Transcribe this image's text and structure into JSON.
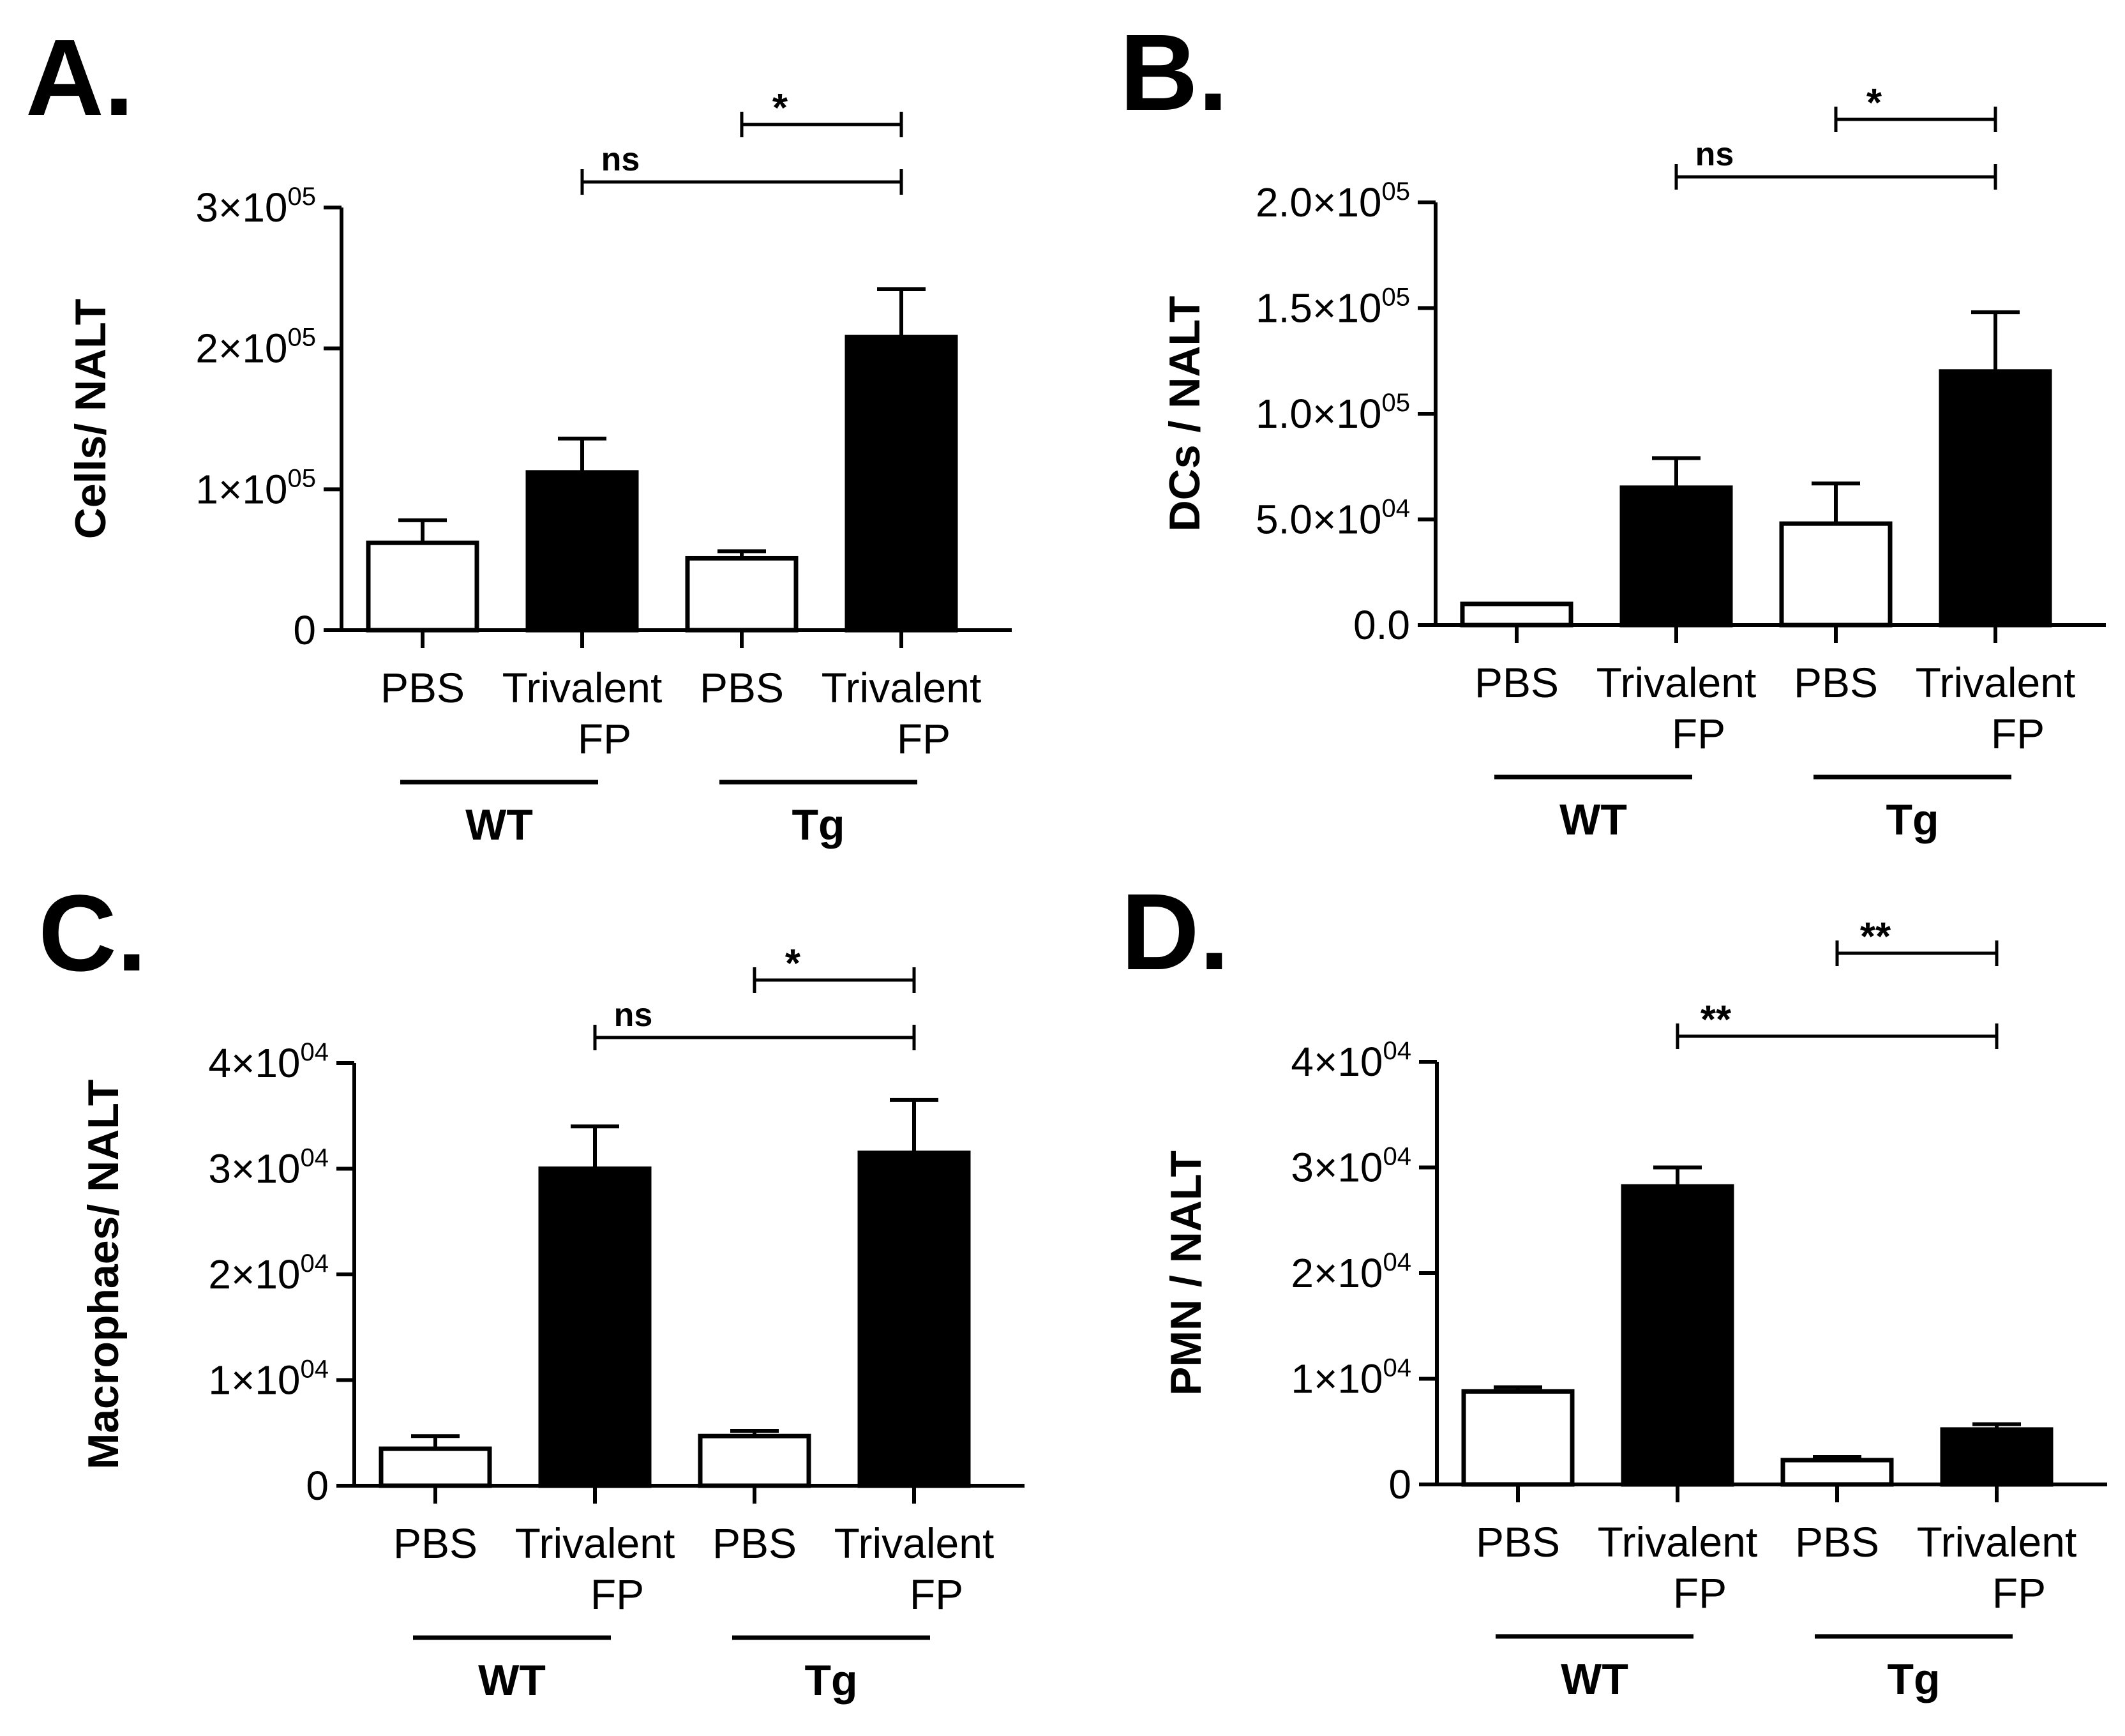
{
  "chart_data": [
    {
      "type": "bar",
      "panel": "A.",
      "ylabel": "Cells/ NALT",
      "yticks": [
        {
          "value": 0,
          "mant": "0",
          "exp": ""
        },
        {
          "value": 100000,
          "mant": "1×10",
          "exp": "05"
        },
        {
          "value": 200000,
          "mant": "2×10",
          "exp": "05"
        },
        {
          "value": 300000,
          "mant": "3×10",
          "exp": "05"
        }
      ],
      "ylim": [
        0,
        300000
      ],
      "categories": [
        {
          "line1": "PBS",
          "line2": "",
          "fill": "open"
        },
        {
          "line1": "Trivalent",
          "line2": "FP",
          "fill": "filled"
        },
        {
          "line1": "PBS",
          "line2": "",
          "fill": "open"
        },
        {
          "line1": "Trivalent",
          "line2": "FP",
          "fill": "filled"
        }
      ],
      "values": [
        62000,
        112000,
        51000,
        208000
      ],
      "errors": [
        16000,
        24000,
        5000,
        34000
      ],
      "groups": [
        {
          "label": "WT",
          "from": 0,
          "to": 1
        },
        {
          "label": "Tg",
          "from": 2,
          "to": 3
        }
      ],
      "significance": [
        {
          "label": "ns",
          "from": 1,
          "to": 3,
          "level": 0
        },
        {
          "label": "*",
          "from": 2,
          "to": 3,
          "level": 1
        }
      ]
    },
    {
      "type": "bar",
      "panel": "B.",
      "ylabel": "DCs / NALT",
      "yticks": [
        {
          "value": 0,
          "mant": "0.0",
          "exp": ""
        },
        {
          "value": 50000,
          "mant": "5.0×10",
          "exp": "04"
        },
        {
          "value": 100000,
          "mant": "1.0×10",
          "exp": "05"
        },
        {
          "value": 150000,
          "mant": "1.5×10",
          "exp": "05"
        },
        {
          "value": 200000,
          "mant": "2.0×10",
          "exp": "05"
        }
      ],
      "ylim": [
        0,
        200000
      ],
      "categories": [
        {
          "line1": "PBS",
          "line2": "",
          "fill": "open"
        },
        {
          "line1": "Trivalent",
          "line2": "FP",
          "fill": "filled"
        },
        {
          "line1": "PBS",
          "line2": "",
          "fill": "open"
        },
        {
          "line1": "Trivalent",
          "line2": "FP",
          "fill": "filled"
        }
      ],
      "values": [
        10000,
        65000,
        48000,
        120000
      ],
      "errors": [
        0,
        14000,
        19000,
        28000
      ],
      "groups": [
        {
          "label": "WT",
          "from": 0,
          "to": 1
        },
        {
          "label": "Tg",
          "from": 2,
          "to": 3
        }
      ],
      "significance": [
        {
          "label": "ns",
          "from": 1,
          "to": 3,
          "level": 0
        },
        {
          "label": "*",
          "from": 2,
          "to": 3,
          "level": 1
        }
      ]
    },
    {
      "type": "bar",
      "panel": "C.",
      "ylabel": "Macrophaes/ NALT",
      "yticks": [
        {
          "value": 0,
          "mant": "0",
          "exp": ""
        },
        {
          "value": 10000,
          "mant": "1×10",
          "exp": "04"
        },
        {
          "value": 20000,
          "mant": "2×10",
          "exp": "04"
        },
        {
          "value": 30000,
          "mant": "3×10",
          "exp": "04"
        },
        {
          "value": 40000,
          "mant": "4×10",
          "exp": "04"
        }
      ],
      "ylim": [
        0,
        40000
      ],
      "categories": [
        {
          "line1": "PBS",
          "line2": "",
          "fill": "open"
        },
        {
          "line1": "Trivalent",
          "line2": "FP",
          "fill": "filled"
        },
        {
          "line1": "PBS",
          "line2": "",
          "fill": "open"
        },
        {
          "line1": "Trivalent",
          "line2": "FP",
          "fill": "filled"
        }
      ],
      "values": [
        3500,
        30000,
        4700,
        31500
      ],
      "errors": [
        1200,
        4000,
        500,
        5000
      ],
      "groups": [
        {
          "label": "WT",
          "from": 0,
          "to": 1
        },
        {
          "label": "Tg",
          "from": 2,
          "to": 3
        }
      ],
      "significance": [
        {
          "label": "ns",
          "from": 1,
          "to": 3,
          "level": 0
        },
        {
          "label": "*",
          "from": 2,
          "to": 3,
          "level": 1
        }
      ]
    },
    {
      "type": "bar",
      "panel": "D.",
      "ylabel": "PMN / NALT",
      "yticks": [
        {
          "value": 0,
          "mant": "0",
          "exp": ""
        },
        {
          "value": 10000,
          "mant": "1×10",
          "exp": "04"
        },
        {
          "value": 20000,
          "mant": "2×10",
          "exp": "04"
        },
        {
          "value": 30000,
          "mant": "3×10",
          "exp": "04"
        },
        {
          "value": 40000,
          "mant": "4×10",
          "exp": "04"
        }
      ],
      "ylim": [
        0,
        40000
      ],
      "categories": [
        {
          "line1": "PBS",
          "line2": "",
          "fill": "open"
        },
        {
          "line1": "Trivalent",
          "line2": "FP",
          "fill": "filled"
        },
        {
          "line1": "PBS",
          "line2": "",
          "fill": "open"
        },
        {
          "line1": "Trivalent",
          "line2": "FP",
          "fill": "filled"
        }
      ],
      "values": [
        8800,
        28200,
        2300,
        5200
      ],
      "errors": [
        400,
        1800,
        300,
        500
      ],
      "groups": [
        {
          "label": "WT",
          "from": 0,
          "to": 1
        },
        {
          "label": "Tg",
          "from": 2,
          "to": 3
        }
      ],
      "significance": [
        {
          "label": "**",
          "from": 1,
          "to": 3,
          "level": 0
        },
        {
          "label": "**",
          "from": 2,
          "to": 3,
          "level": 2
        }
      ]
    }
  ]
}
